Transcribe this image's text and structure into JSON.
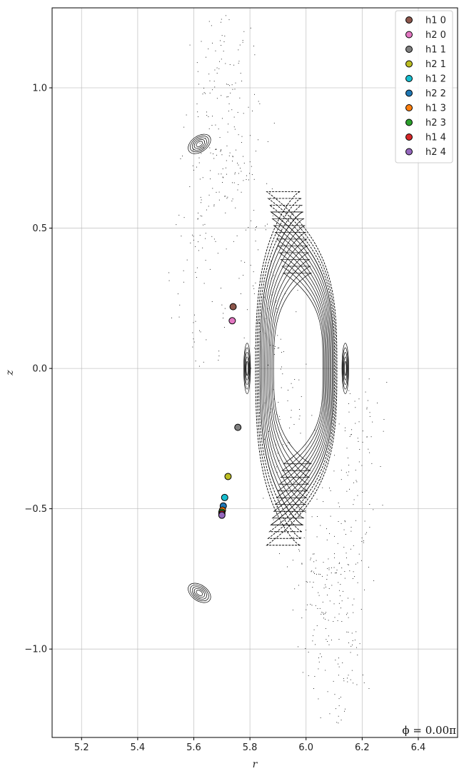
{
  "chart_data": {
    "type": "scatter",
    "title": "",
    "xlabel": "r",
    "ylabel": "z",
    "xlim": [
      5.095,
      6.54
    ],
    "ylim": [
      -1.315,
      1.285
    ],
    "xticks": [
      5.2,
      5.4,
      5.6,
      5.8,
      6.0,
      6.2,
      6.4
    ],
    "xtick_labels": [
      "5.2",
      "5.4",
      "5.6",
      "5.8",
      "6.0",
      "6.2",
      "6.4"
    ],
    "yticks": [
      -1.0,
      -0.5,
      0.0,
      0.5,
      1.0
    ],
    "ytick_labels": [
      "−1.0",
      "−0.5",
      "0.0",
      "0.5",
      "1.0"
    ],
    "grid": true,
    "legend_position": "top-right",
    "annotation": "ϕ = 0.00π",
    "series": [
      {
        "name": "h1 0",
        "color": "#8c564b",
        "x": [
          5.74
        ],
        "y": [
          0.22
        ]
      },
      {
        "name": "h2 0",
        "color": "#e377c2",
        "x": [
          5.737
        ],
        "y": [
          0.17
        ]
      },
      {
        "name": "h1 1",
        "color": "#7f7f7f",
        "x": [
          5.757
        ],
        "y": [
          -0.21
        ]
      },
      {
        "name": "h2 1",
        "color": "#bcbd22",
        "x": [
          5.722
        ],
        "y": [
          -0.385
        ]
      },
      {
        "name": "h1 2",
        "color": "#17becf",
        "x": [
          5.71
        ],
        "y": [
          -0.46
        ]
      },
      {
        "name": "h2 2",
        "color": "#1f77b4",
        "x": [
          5.705
        ],
        "y": [
          -0.49
        ]
      },
      {
        "name": "h1 3",
        "color": "#ff7f0e",
        "x": [
          5.702
        ],
        "y": [
          -0.505
        ]
      },
      {
        "name": "h2 3",
        "color": "#2ca02c",
        "x": [
          5.7
        ],
        "y": [
          -0.512
        ]
      },
      {
        "name": "h1 4",
        "color": "#d62728",
        "x": [
          5.7
        ],
        "y": [
          -0.518
        ]
      },
      {
        "name": "h2 4",
        "color": "#9467bd",
        "x": [
          5.7
        ],
        "y": [
          -0.523
        ]
      }
    ],
    "poincare_background": {
      "color": "#000000",
      "main_region": {
        "r_inner": 5.89,
        "r_outer_inner_surface": 6.06,
        "r_outer": 6.11,
        "z_extent": 0.63,
        "inner_z_extent": 0.34
      },
      "islands": [
        {
          "r": 5.62,
          "z": 0.8
        },
        {
          "r": 5.62,
          "z": -0.8
        },
        {
          "r": 5.79,
          "z": 0.0
        },
        {
          "r": 6.14,
          "z": 0.0
        }
      ]
    }
  }
}
